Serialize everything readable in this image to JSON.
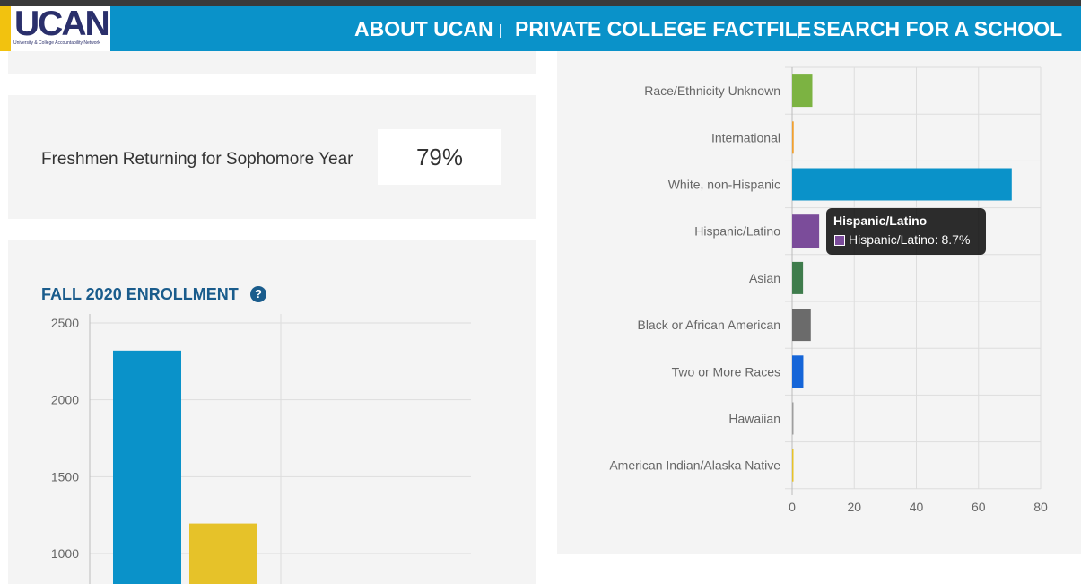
{
  "header": {
    "logo_text": "UCAN",
    "logo_subtitle": "University & College Accountability Network",
    "nav": [
      "ABOUT UCAN",
      "PRIVATE COLLEGE FACTFILE",
      "SEARCH FOR A SCHOOL"
    ]
  },
  "retention": {
    "label": "Freshmen Returning for Sophomore Year",
    "value": "79%"
  },
  "enrollment": {
    "title": "FALL 2020 ENROLLMENT",
    "help_icon": "question-circle-icon"
  },
  "chart_data": [
    {
      "type": "bar",
      "orientation": "vertical",
      "title": "FALL 2020 ENROLLMENT",
      "y_ticks": [
        "2500",
        "2000",
        "1500",
        "1000"
      ],
      "ylim_visible": [
        1000,
        2500
      ],
      "series": [
        {
          "values": [
            2320
          ],
          "color": "#0a92c9"
        },
        {
          "values": [
            1195
          ],
          "color": "#e6c229"
        }
      ],
      "grid": true
    },
    {
      "type": "bar",
      "orientation": "horizontal",
      "categories": [
        "Race/Ethnicity Unknown",
        "International",
        "White, non-Hispanic",
        "Hispanic/Latino",
        "Asian",
        "Black or African American",
        "Two or More Races",
        "Hawaiian",
        "American Indian/Alaska Native"
      ],
      "values": [
        6.5,
        0.5,
        70.7,
        8.7,
        3.5,
        6.0,
        3.6,
        0.1,
        0.3
      ],
      "colors": [
        "#7cb342",
        "#f0a030",
        "#0a92c9",
        "#7b4c9a",
        "#3f7c4c",
        "#6b6b6b",
        "#1565d8",
        "#9e9e9e",
        "#e6c229"
      ],
      "x_ticks": [
        "0",
        "20",
        "40",
        "60",
        "80"
      ],
      "xlim": [
        0,
        80
      ],
      "grid": true,
      "tooltip": {
        "title": "Hispanic/Latino",
        "text": "Hispanic/Latino: 8.7%"
      }
    }
  ]
}
